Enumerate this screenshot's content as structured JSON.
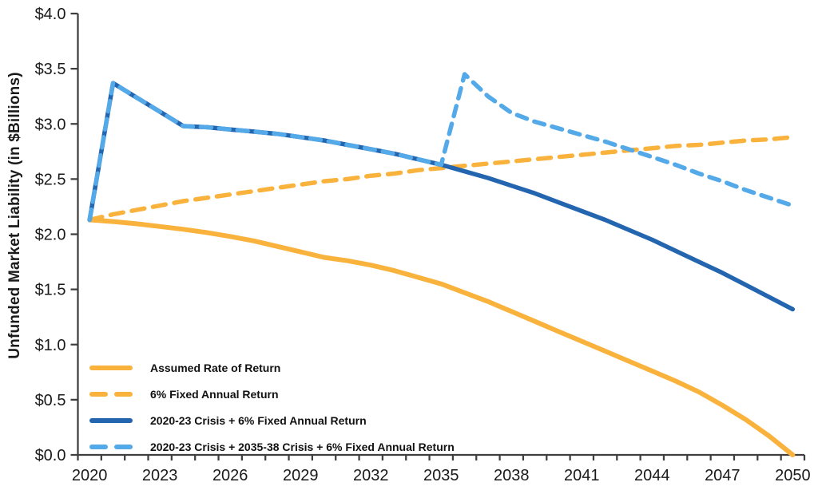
{
  "chart_data": {
    "type": "line",
    "title": "",
    "xlabel": "",
    "ylabel": "Unfunded Market Liability (in $Billions)",
    "ylim": [
      0,
      4
    ],
    "grid": false,
    "legend_position": "inside-bottom-left",
    "axis_color": "#3f3f3f",
    "text_color": "#1a1a1a",
    "ytick_values": [
      4.0,
      3.5,
      3.0,
      2.5,
      2.0,
      1.5,
      1.0,
      0.5,
      0.0
    ],
    "ytick_labels": [
      "$4.0",
      "$3.5",
      "$3.0",
      "$2.5",
      "$2.0",
      "$1.5",
      "$1.0",
      "$0.5",
      "$0.0"
    ],
    "xtick_labels": [
      "2020",
      "2023",
      "2026",
      "2029",
      "2032",
      "2035",
      "2038",
      "2041",
      "2044",
      "2047",
      "2050"
    ],
    "xtick_indices": [
      0,
      3,
      6,
      9,
      12,
      15,
      18,
      21,
      24,
      27,
      30
    ],
    "categories": [
      2020,
      2021,
      2022,
      2023,
      2024,
      2025,
      2026,
      2027,
      2028,
      2029,
      2030,
      2031,
      2032,
      2033,
      2034,
      2035,
      2036,
      2037,
      2038,
      2039,
      2040,
      2041,
      2042,
      2043,
      2044,
      2045,
      2046,
      2047,
      2048,
      2049,
      2050
    ],
    "series": [
      {
        "name": "Assumed Rate of Return",
        "color": "#F9B23C",
        "style": "solid",
        "values": [
          2.13,
          2.115,
          2.095,
          2.07,
          2.045,
          2.015,
          1.98,
          1.94,
          1.89,
          1.84,
          1.79,
          1.76,
          1.72,
          1.67,
          1.61,
          1.55,
          1.47,
          1.39,
          1.3,
          1.21,
          1.12,
          1.03,
          0.94,
          0.85,
          0.76,
          0.67,
          0.57,
          0.45,
          0.32,
          0.17,
          0.0
        ]
      },
      {
        "name": "6% Fixed Annual Return",
        "color": "#F9B23C",
        "style": "dashed",
        "values": [
          2.13,
          2.18,
          2.22,
          2.26,
          2.3,
          2.33,
          2.36,
          2.39,
          2.42,
          2.45,
          2.48,
          2.5,
          2.53,
          2.55,
          2.58,
          2.6,
          2.62,
          2.64,
          2.66,
          2.68,
          2.7,
          2.72,
          2.74,
          2.76,
          2.78,
          2.8,
          2.81,
          2.83,
          2.85,
          2.86,
          2.88
        ]
      },
      {
        "name": "2020-23 Crisis + 6% Fixed Annual Return",
        "color": "#2365AF",
        "style": "solid",
        "values": [
          2.13,
          3.37,
          3.24,
          3.11,
          2.98,
          2.97,
          2.95,
          2.93,
          2.91,
          2.88,
          2.85,
          2.81,
          2.77,
          2.73,
          2.68,
          2.63,
          2.57,
          2.51,
          2.44,
          2.37,
          2.29,
          2.21,
          2.13,
          2.04,
          1.95,
          1.85,
          1.75,
          1.65,
          1.54,
          1.43,
          1.32
        ]
      },
      {
        "name": "2020-23 Crisis + 2035-38 Crisis + 6% Fixed Annual Return",
        "color": "#54A9E8",
        "style": "dashed",
        "values": [
          2.13,
          3.37,
          3.24,
          3.11,
          2.98,
          2.97,
          2.95,
          2.93,
          2.91,
          2.88,
          2.85,
          2.81,
          2.77,
          2.73,
          2.68,
          2.63,
          3.45,
          3.25,
          3.1,
          3.02,
          2.96,
          2.9,
          2.84,
          2.77,
          2.7,
          2.63,
          2.55,
          2.48,
          2.4,
          2.33,
          2.26
        ]
      }
    ]
  }
}
